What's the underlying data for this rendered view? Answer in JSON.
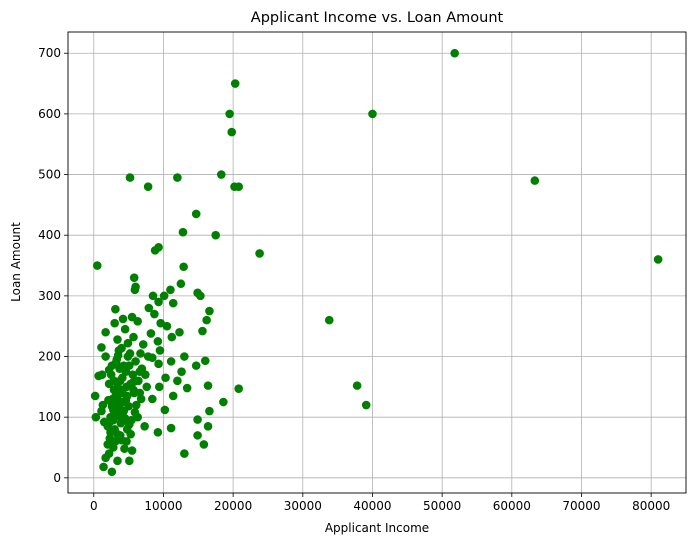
{
  "chart_data": {
    "type": "scatter",
    "title": "Applicant Income vs. Loan Amount",
    "xlabel": "Applicant Income",
    "ylabel": "Loan Amount",
    "xlim": [
      -3700,
      85000
    ],
    "ylim": [
      -25,
      735
    ],
    "xticks": [
      0,
      10000,
      20000,
      30000,
      40000,
      50000,
      60000,
      70000,
      80000
    ],
    "yticks": [
      0,
      100,
      200,
      300,
      400,
      500,
      600,
      700
    ],
    "grid": true,
    "color": "#008000",
    "series": [
      {
        "points": [
          [
            51800,
            700
          ],
          [
            20300,
            650
          ],
          [
            19500,
            600
          ],
          [
            40000,
            600
          ],
          [
            19800,
            570
          ],
          [
            18300,
            500
          ],
          [
            5200,
            495
          ],
          [
            12000,
            495
          ],
          [
            63300,
            490
          ],
          [
            7800,
            480
          ],
          [
            20200,
            480
          ],
          [
            20800,
            480
          ],
          [
            14700,
            435
          ],
          [
            12800,
            405
          ],
          [
            17500,
            400
          ],
          [
            9300,
            380
          ],
          [
            8800,
            375
          ],
          [
            23800,
            370
          ],
          [
            81000,
            360
          ],
          [
            500,
            350
          ],
          [
            12900,
            348
          ],
          [
            5800,
            330
          ],
          [
            12500,
            320
          ],
          [
            6000,
            315
          ],
          [
            5900,
            310
          ],
          [
            11000,
            310
          ],
          [
            14900,
            305
          ],
          [
            15300,
            300
          ],
          [
            8500,
            300
          ],
          [
            10100,
            300
          ],
          [
            9300,
            290
          ],
          [
            11400,
            288
          ],
          [
            7900,
            280
          ],
          [
            3100,
            278
          ],
          [
            16600,
            275
          ],
          [
            8700,
            270
          ],
          [
            5500,
            265
          ],
          [
            4200,
            262
          ],
          [
            33800,
            260
          ],
          [
            16200,
            260
          ],
          [
            9600,
            255
          ],
          [
            10500,
            250
          ],
          [
            3000,
            255
          ],
          [
            6300,
            258
          ],
          [
            15600,
            242
          ],
          [
            4500,
            245
          ],
          [
            1700,
            240
          ],
          [
            8200,
            238
          ],
          [
            12300,
            240
          ],
          [
            3400,
            228
          ],
          [
            11200,
            232
          ],
          [
            9200,
            225
          ],
          [
            7100,
            220
          ],
          [
            5700,
            232
          ],
          [
            1100,
            215
          ],
          [
            4000,
            214
          ],
          [
            9500,
            210
          ],
          [
            6700,
            205
          ],
          [
            1700,
            200
          ],
          [
            3500,
            202
          ],
          [
            13000,
            200
          ],
          [
            8400,
            198
          ],
          [
            16000,
            193
          ],
          [
            11100,
            192
          ],
          [
            9300,
            188
          ],
          [
            14700,
            185
          ],
          [
            3200,
            190
          ],
          [
            1200,
            170
          ],
          [
            700,
            168
          ],
          [
            7400,
            170
          ],
          [
            6600,
            175
          ],
          [
            2200,
            178
          ],
          [
            12600,
            175
          ],
          [
            10300,
            165
          ],
          [
            12000,
            160
          ],
          [
            6000,
            160
          ],
          [
            16400,
            152
          ],
          [
            13400,
            148
          ],
          [
            20800,
            147
          ],
          [
            9400,
            150
          ],
          [
            2200,
            155
          ],
          [
            37800,
            152
          ],
          [
            5700,
            145
          ],
          [
            18600,
            125
          ],
          [
            39100,
            120
          ],
          [
            11400,
            135
          ],
          [
            8400,
            130
          ],
          [
            4100,
            140
          ],
          [
            6600,
            140
          ],
          [
            1100,
            110
          ],
          [
            1300,
            120
          ],
          [
            200,
            135
          ],
          [
            300,
            100
          ],
          [
            3700,
            115
          ],
          [
            2600,
            118
          ],
          [
            10200,
            112
          ],
          [
            16600,
            110
          ],
          [
            5900,
            108
          ],
          [
            1500,
            92
          ],
          [
            2800,
            95
          ],
          [
            14900,
            96
          ],
          [
            4400,
            95
          ],
          [
            5100,
            88
          ],
          [
            2000,
            85
          ],
          [
            16400,
            85
          ],
          [
            7300,
            85
          ],
          [
            11100,
            82
          ],
          [
            9200,
            75
          ],
          [
            14900,
            70
          ],
          [
            4800,
            80
          ],
          [
            3400,
            72
          ],
          [
            5300,
            72
          ],
          [
            2300,
            65
          ],
          [
            2000,
            55
          ],
          [
            15800,
            55
          ],
          [
            3100,
            60
          ],
          [
            1700,
            33
          ],
          [
            1400,
            18
          ],
          [
            2600,
            10
          ],
          [
            3400,
            28
          ],
          [
            5100,
            28
          ],
          [
            5500,
            45
          ],
          [
            4400,
            48
          ],
          [
            13000,
            40
          ],
          [
            2200,
            40
          ],
          [
            2800,
            50
          ],
          [
            4000,
            62
          ],
          [
            3600,
            102
          ],
          [
            4200,
            125
          ],
          [
            4800,
            135
          ],
          [
            5300,
            155
          ],
          [
            2900,
            145
          ],
          [
            3800,
            160
          ],
          [
            4600,
            175
          ],
          [
            5100,
            185
          ],
          [
            3300,
            195
          ],
          [
            2700,
            130
          ],
          [
            2400,
            100
          ],
          [
            3000,
            80
          ],
          [
            6100,
            120
          ],
          [
            6800,
            130
          ],
          [
            7600,
            150
          ],
          [
            3900,
            90
          ],
          [
            4300,
            110
          ],
          [
            2500,
            170
          ],
          [
            3700,
            180
          ],
          [
            4900,
            200
          ],
          [
            5600,
            170
          ],
          [
            2800,
            112
          ],
          [
            3200,
            138
          ],
          [
            4700,
            150
          ],
          [
            5800,
            140
          ],
          [
            6400,
            160
          ],
          [
            3500,
            128
          ],
          [
            4100,
            165
          ],
          [
            2600,
            185
          ],
          [
            5000,
            118
          ],
          [
            3300,
            105
          ],
          [
            4500,
            98
          ],
          [
            2100,
            128
          ],
          [
            6300,
            100
          ],
          [
            3800,
            70
          ],
          [
            4700,
            60
          ],
          [
            2400,
            75
          ],
          [
            5400,
            95
          ],
          [
            6900,
            180
          ],
          [
            7800,
            200
          ],
          [
            3600,
            210
          ],
          [
            4900,
            222
          ],
          [
            6000,
            192
          ],
          [
            2300,
            92
          ],
          [
            3400,
            150
          ],
          [
            3900,
            125
          ],
          [
            4300,
            185
          ],
          [
            5200,
            205
          ],
          [
            4000,
            145
          ],
          [
            3100,
            118
          ],
          [
            4600,
            128
          ],
          [
            5700,
            158
          ],
          [
            2900,
            160
          ]
        ]
      }
    ]
  }
}
